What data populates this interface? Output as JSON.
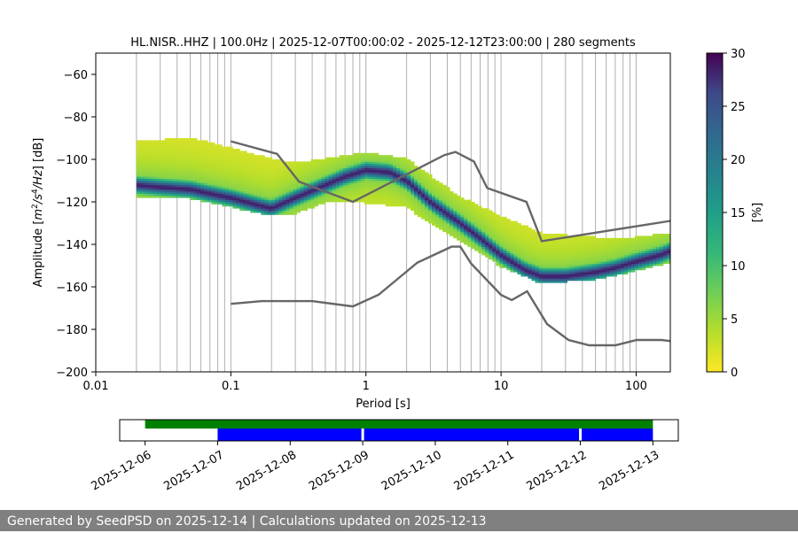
{
  "chart_data": [
    {
      "type": "heatmap",
      "title": "HL.NISR..HHZ | 100.0Hz | 2025-12-07T00:00:02 - 2025-12-12T23:00:00 | 280 segments",
      "xlabel": "Period [s]",
      "ylabel_parts": [
        "Amplitude [",
        "m",
        "2",
        "/",
        "s",
        "4",
        "/",
        "Hz",
        "] [dB]"
      ],
      "xscale": "log",
      "xlim": [
        0.01,
        179
      ],
      "ylim": [
        -200,
        -50
      ],
      "xtick_values": [
        0.01,
        0.1,
        1,
        10,
        100
      ],
      "xtick_labels": [
        "0.01",
        "0.1",
        "1",
        "10",
        "100"
      ],
      "ytick_values": [
        -60,
        -80,
        -100,
        -120,
        -140,
        -160,
        -180,
        -200
      ],
      "ytick_labels": [
        "−60",
        "−80",
        "−100",
        "−120",
        "−140",
        "−160",
        "−180",
        "−200"
      ],
      "grid": "vertical, at log period ticks",
      "colorbar": {
        "label": "[%]",
        "colormap": "viridis_r",
        "range": [
          0,
          30
        ],
        "tick_values": [
          0,
          5,
          10,
          15,
          20,
          25,
          30
        ],
        "tick_labels": [
          "0",
          "5",
          "10",
          "15",
          "20",
          "25",
          "30"
        ]
      },
      "psd_ridge": {
        "description": "most probable PSD level (dark blue-purple band) per period",
        "period": [
          0.02,
          0.03,
          0.05,
          0.07,
          0.1,
          0.15,
          0.2,
          0.3,
          0.5,
          0.7,
          1.0,
          1.5,
          2,
          3,
          5,
          7,
          10,
          15,
          20,
          30,
          50,
          70,
          100,
          150,
          179
        ],
        "amplitude_db": [
          -112,
          -113,
          -114,
          -116,
          -118,
          -121,
          -123,
          -118,
          -112,
          -108,
          -105,
          -106,
          -110,
          -120,
          -130,
          -137,
          -145,
          -152,
          -155,
          -155,
          -153,
          -151,
          -148,
          -145,
          -143
        ]
      },
      "psd_range": {
        "period": [
          0.02,
          0.05,
          0.1,
          0.2,
          0.3,
          0.5,
          1,
          2,
          3,
          5,
          10,
          20,
          50,
          100,
          179
        ],
        "upper_db": [
          -92,
          -90,
          -95,
          -100,
          -102,
          -100,
          -97,
          -100,
          -108,
          -118,
          -127,
          -135,
          -137,
          -137,
          -135
        ],
        "lower_db": [
          -118,
          -118,
          -122,
          -126,
          -125,
          -120,
          -120,
          -122,
          -130,
          -138,
          -150,
          -158,
          -156,
          -152,
          -148
        ]
      },
      "nhnm": {
        "period": [
          0.1,
          0.22,
          0.32,
          0.8,
          3.8,
          4.6,
          6.3,
          7.9,
          15.4,
          20,
          354.8
        ],
        "amplitude_db": [
          -91.5,
          -97.4,
          -110.5,
          -120,
          -98,
          -96.5,
          -101,
          -113.5,
          -120,
          -138.5,
          -126
        ]
      },
      "nlnm": {
        "period": [
          0.1,
          0.17,
          0.4,
          0.8,
          1.24,
          2.4,
          4.3,
          5,
          6,
          10,
          12,
          15.6,
          21.9,
          31.6,
          45,
          70,
          101,
          154,
          179
        ],
        "amplitude_db": [
          -168,
          -166.7,
          -166.7,
          -169.2,
          -163.7,
          -148.6,
          -141.1,
          -141.1,
          -149,
          -163.8,
          -166.2,
          -162.1,
          -177.5,
          -185,
          -187.5,
          -187.5,
          -185,
          -185,
          -185.5
        ]
      }
    },
    {
      "type": "timeline",
      "tick_labels": [
        "2025-12-06",
        "2025-12-07",
        "2025-12-08",
        "2025-12-09",
        "2025-12-10",
        "2025-12-11",
        "2025-12-12",
        "2025-12-13"
      ],
      "tick_days": [
        0,
        1,
        2,
        3,
        4,
        5,
        6,
        7
      ],
      "xlim_days": [
        -0.35,
        7.35
      ],
      "available_data": {
        "color": "#008000",
        "start_day": 0.0,
        "end_day": 7.0
      },
      "used_data": {
        "color": "#0000ff",
        "start_day": 1.0,
        "end_day": 7.0,
        "gaps_day": [
          3.0,
          6.0
        ]
      }
    }
  ],
  "footer": {
    "text": "Generated by SeedPSD on 2025-12-14 | Calculations updated on 2025-12-13"
  }
}
